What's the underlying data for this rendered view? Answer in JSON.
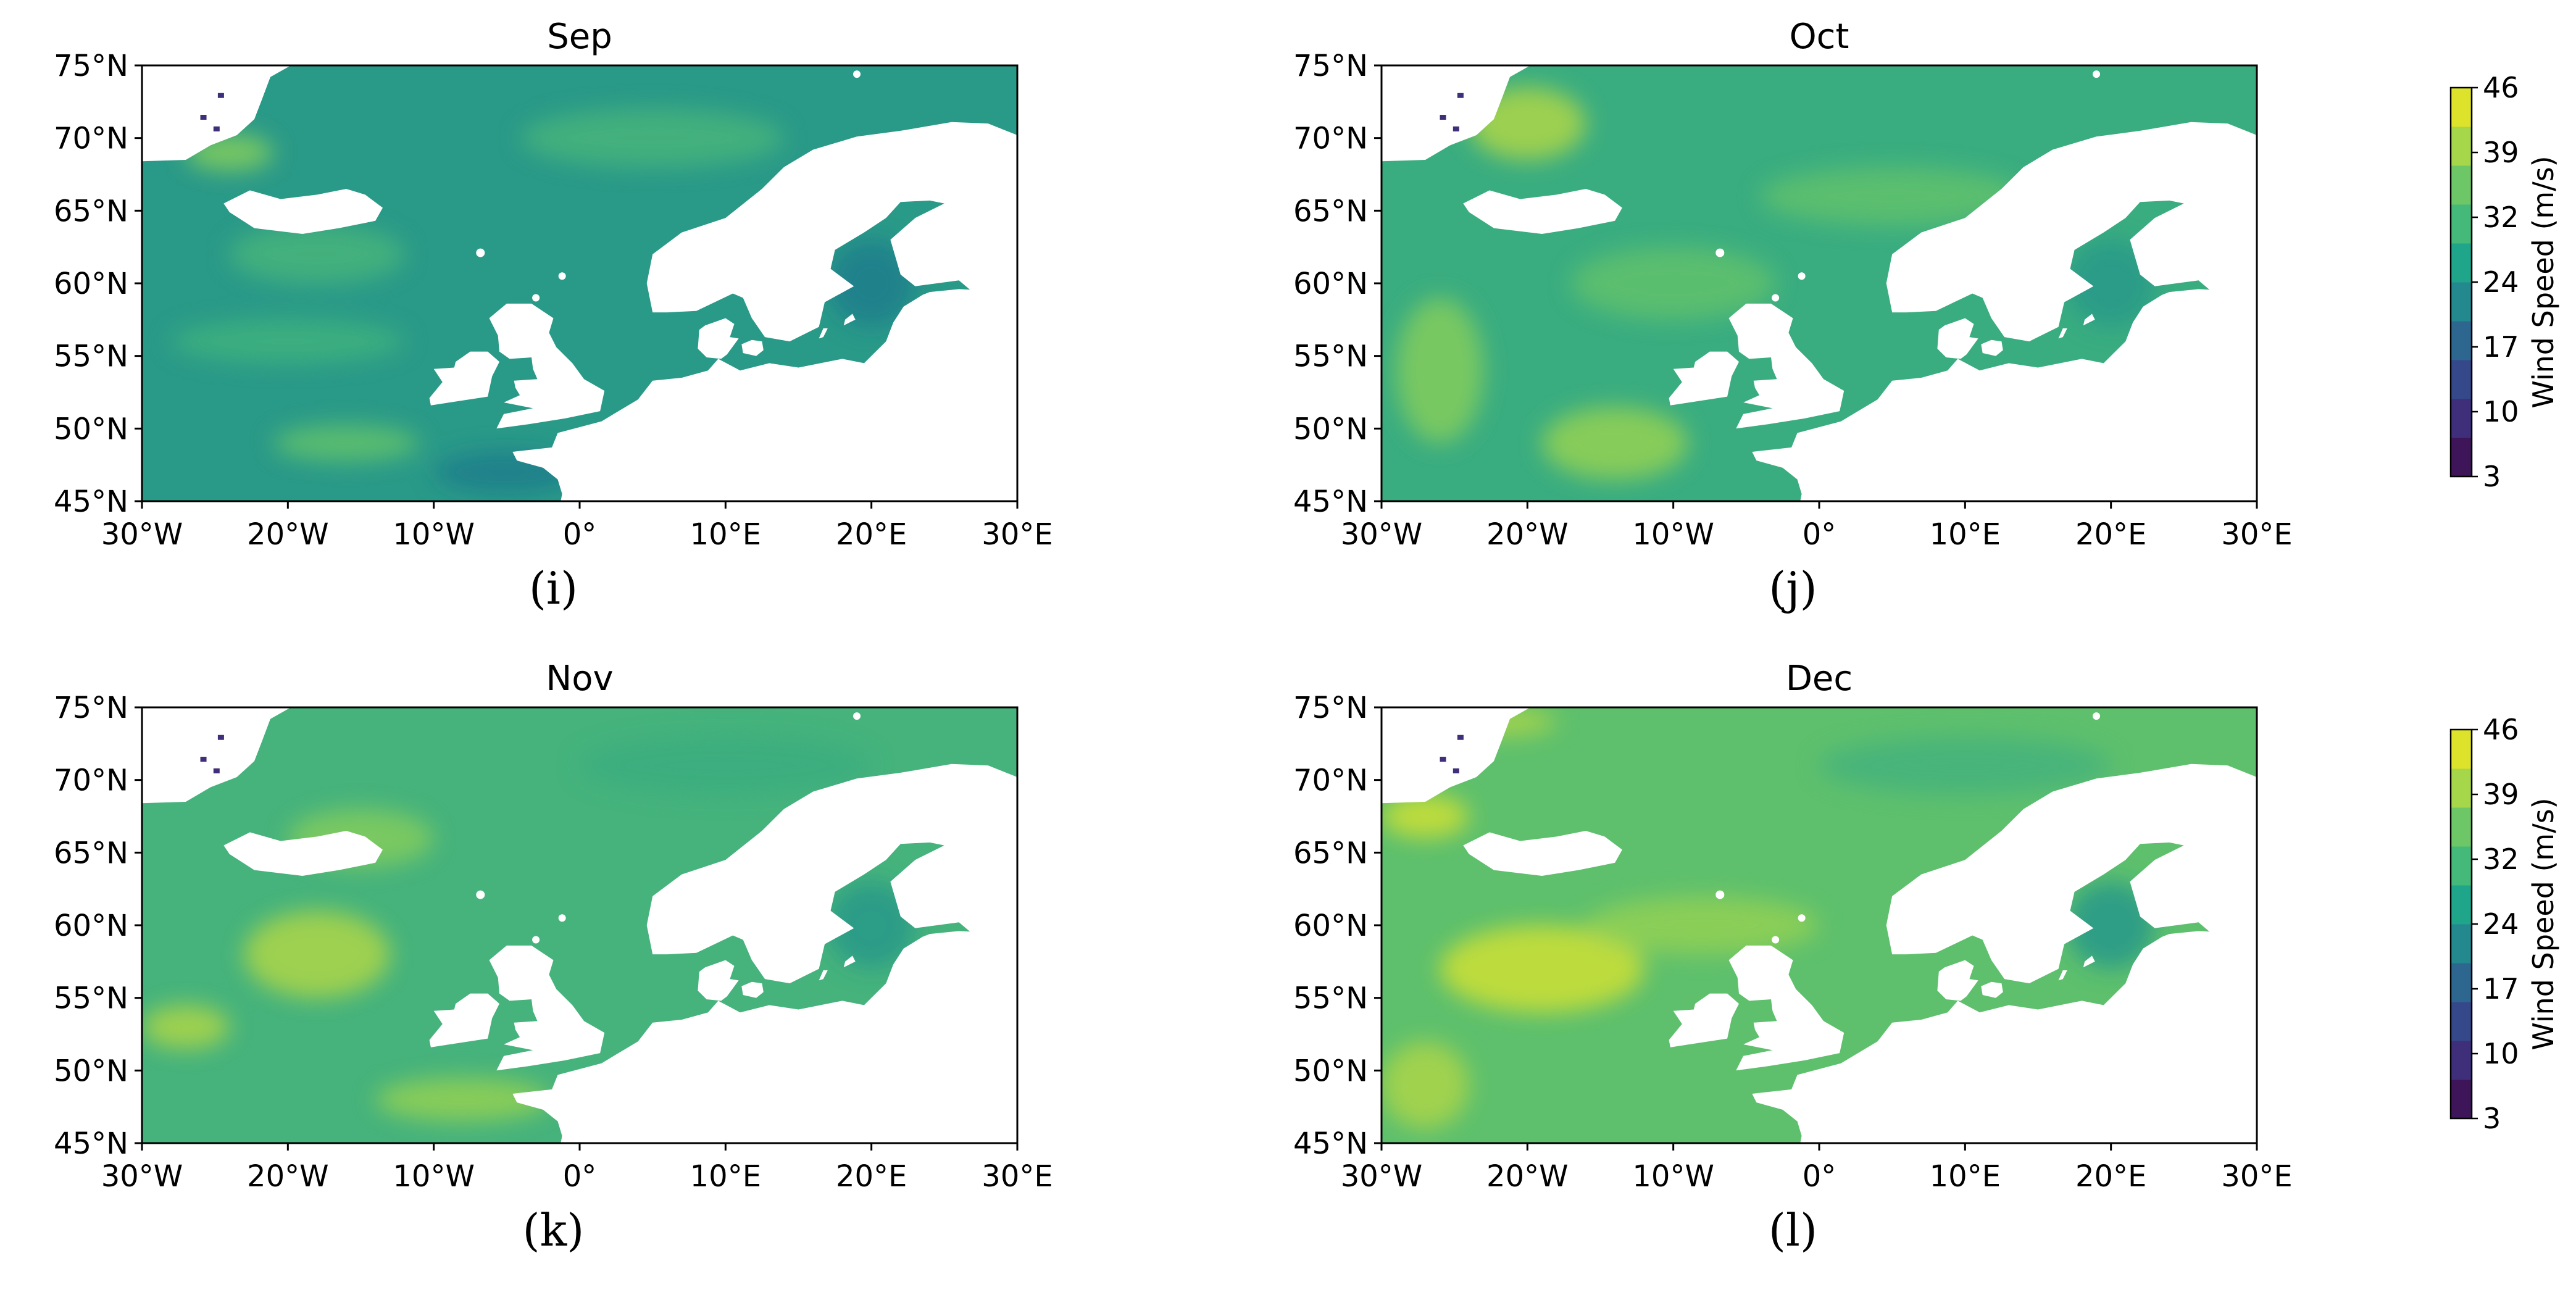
{
  "colorbar": {
    "label": "Wind Speed (m/s)",
    "ticks": [
      "3",
      "10",
      "17",
      "24",
      "32",
      "39",
      "46"
    ],
    "colors": [
      "#3d1558",
      "#3f2e7a",
      "#35488a",
      "#2d6790",
      "#24888f",
      "#1fa58a",
      "#44b97a",
      "#6dc767",
      "#a6d64a",
      "#dce32a"
    ]
  },
  "lat_ticks": [
    "45°N",
    "50°N",
    "55°N",
    "60°N",
    "65°N",
    "70°N",
    "75°N"
  ],
  "lon_ticks": [
    "30°W",
    "20°W",
    "10°W",
    "0°",
    "10°E",
    "20°E",
    "30°E"
  ],
  "land_color": "#ffffff",
  "panels": [
    {
      "title": "Sep",
      "letter": "(i)",
      "chart_data": {
        "type": "heatmap",
        "title": "Sep",
        "xlim": [
          -30,
          30
        ],
        "ylim": [
          45,
          75
        ],
        "units": "m/s",
        "base_color": "#2a9a88",
        "zones": [
          {
            "lon": -18,
            "lat": 62,
            "w": 12,
            "h": 4,
            "color": "#46b37c"
          },
          {
            "lon": -20,
            "lat": 56,
            "w": 16,
            "h": 3,
            "color": "#3fb07e"
          },
          {
            "lon": -16,
            "lat": 49,
            "w": 10,
            "h": 2.5,
            "color": "#5ec06d"
          },
          {
            "lon": -24,
            "lat": 69,
            "w": 6,
            "h": 2.5,
            "color": "#7fcb5e"
          },
          {
            "lon": 5,
            "lat": 70,
            "w": 18,
            "h": 4,
            "color": "#46b37c"
          },
          {
            "lon": -5,
            "lat": 47,
            "w": 10,
            "h": 3,
            "color": "#1f7f8c"
          },
          {
            "lon": 20,
            "lat": 60,
            "w": 6,
            "h": 6,
            "color": "#1f7f8c"
          }
        ]
      }
    },
    {
      "title": "Oct",
      "letter": "(j)",
      "chart_data": {
        "type": "heatmap",
        "title": "Oct",
        "xlim": [
          -30,
          30
        ],
        "ylim": [
          45,
          75
        ],
        "units": "m/s",
        "base_color": "#3aad80",
        "zones": [
          {
            "lon": -20,
            "lat": 71,
            "w": 8,
            "h": 5,
            "color": "#a7d44a"
          },
          {
            "lon": -26,
            "lat": 54,
            "w": 6,
            "h": 10,
            "color": "#7fcb5e"
          },
          {
            "lon": -14,
            "lat": 49,
            "w": 10,
            "h": 5,
            "color": "#8fcf55"
          },
          {
            "lon": -10,
            "lat": 60,
            "w": 14,
            "h": 5,
            "color": "#5ec06d"
          },
          {
            "lon": 5,
            "lat": 66,
            "w": 18,
            "h": 4,
            "color": "#5ec06d"
          },
          {
            "lon": 20,
            "lat": 60,
            "w": 6,
            "h": 6,
            "color": "#2a9a88"
          }
        ]
      }
    },
    {
      "title": "Nov",
      "letter": "(k)",
      "chart_data": {
        "type": "heatmap",
        "title": "Nov",
        "xlim": [
          -30,
          30
        ],
        "ylim": [
          45,
          75
        ],
        "units": "m/s",
        "base_color": "#46b37c",
        "zones": [
          {
            "lon": -18,
            "lat": 58,
            "w": 10,
            "h": 6,
            "color": "#a7d44a"
          },
          {
            "lon": -27,
            "lat": 53,
            "w": 6,
            "h": 3,
            "color": "#a7d44a"
          },
          {
            "lon": -8,
            "lat": 48,
            "w": 12,
            "h": 3,
            "color": "#8fcf55"
          },
          {
            "lon": -15,
            "lat": 66,
            "w": 10,
            "h": 4,
            "color": "#7fcb5e"
          },
          {
            "lon": 10,
            "lat": 71,
            "w": 20,
            "h": 4,
            "color": "#3aad80"
          },
          {
            "lon": 20,
            "lat": 60,
            "w": 6,
            "h": 6,
            "color": "#2a9a88"
          }
        ]
      }
    },
    {
      "title": "Dec",
      "letter": "(l)",
      "chart_data": {
        "type": "heatmap",
        "title": "Dec",
        "xlim": [
          -30,
          30
        ],
        "ylim": [
          45,
          75
        ],
        "units": "m/s",
        "base_color": "#5ec06d",
        "zones": [
          {
            "lon": -19,
            "lat": 57,
            "w": 14,
            "h": 6,
            "color": "#c8de37"
          },
          {
            "lon": -27,
            "lat": 67.5,
            "w": 6,
            "h": 3,
            "color": "#c8de37"
          },
          {
            "lon": -22,
            "lat": 74,
            "w": 8,
            "h": 2,
            "color": "#a7d44a"
          },
          {
            "lon": -27,
            "lat": 49,
            "w": 6,
            "h": 6,
            "color": "#a7d44a"
          },
          {
            "lon": -8,
            "lat": 60,
            "w": 16,
            "h": 4,
            "color": "#8fcf55"
          },
          {
            "lon": 10,
            "lat": 71,
            "w": 20,
            "h": 4,
            "color": "#46b37c"
          },
          {
            "lon": 20,
            "lat": 60,
            "w": 6,
            "h": 6,
            "color": "#2a9a88"
          }
        ]
      }
    }
  ]
}
